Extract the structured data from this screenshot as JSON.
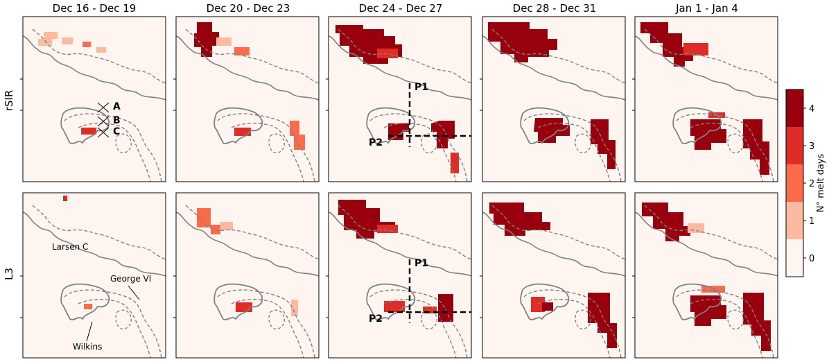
{
  "figure": {
    "columns": [
      "Dec 16 - Dec 19",
      "Dec 20 - Dec 23",
      "Dec 24 - Dec 27",
      "Dec 28 - Dec 31",
      "Jan 1 - Jan 4"
    ],
    "rows": [
      "rSIR",
      "L3"
    ]
  },
  "annotations": {
    "points": [
      "A",
      "B",
      "C"
    ],
    "profiles": [
      "P1",
      "P2"
    ],
    "larsen": "Larsen C",
    "george": "George VI",
    "wilkins": "Wilkins"
  },
  "colorbar": {
    "label": "N° melt days",
    "ticks": [
      "0",
      "1",
      "2",
      "3",
      "4"
    ],
    "colors": [
      "#fff5f0",
      "#fcbba1",
      "#fb6a4a",
      "#de2d26",
      "#99000d"
    ]
  },
  "colors": {
    "outline": "#808080",
    "panel_bg": "#fff5f0"
  },
  "chart_data": {
    "type": "heatmap",
    "description_rows": [
      "rSIR",
      "L3"
    ],
    "columns": [
      "Dec 16 - Dec 19",
      "Dec 20 - Dec 23",
      "Dec 24 - Dec 27",
      "Dec 28 - Dec 31",
      "Jan 1 - Jan 4"
    ],
    "value_range": [
      0,
      4
    ],
    "colorbar_label": "N° melt days"
  }
}
